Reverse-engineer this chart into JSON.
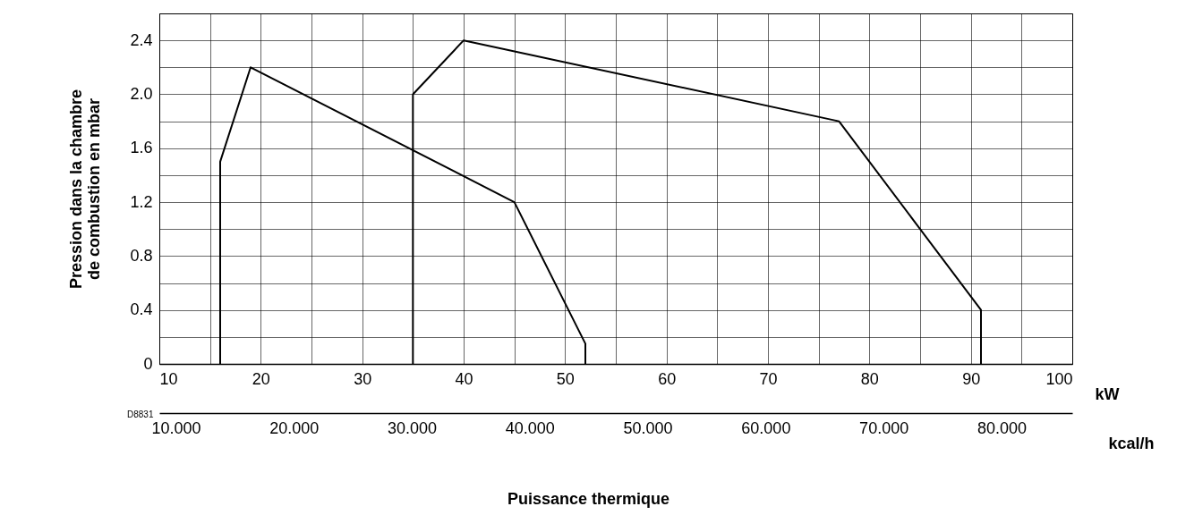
{
  "chart_data": {
    "type": "line",
    "xlabel": "kW",
    "x2label": "kcal/h",
    "ylabel": "Pression dans la chambre de combustion en mbar",
    "xlim": [
      10,
      100
    ],
    "xticks": [
      10,
      {
        "value": 15,
        "label": null
      },
      20,
      {
        "value": 25,
        "label": null
      },
      30,
      {
        "value": 35,
        "label": null
      },
      40,
      {
        "value": 45,
        "label": null
      },
      50,
      {
        "value": 55,
        "label": null
      },
      60,
      {
        "value": 65,
        "label": null
      },
      70,
      {
        "value": 75,
        "label": null
      },
      80,
      {
        "value": 85,
        "label": null
      },
      90,
      {
        "value": 95,
        "label": null
      },
      100
    ],
    "x2lim": [
      8.6,
      86
    ],
    "x2ticks": [
      {
        "value": 10,
        "label": "10.000"
      },
      {
        "value": 20,
        "label": "20.000"
      },
      {
        "value": 30,
        "label": "30.000"
      },
      {
        "value": 40,
        "label": "40.000"
      },
      {
        "value": 50,
        "label": "50.000"
      },
      {
        "value": 60,
        "label": "60.000"
      },
      {
        "value": 70,
        "label": "70.000"
      },
      {
        "value": 80,
        "label": "80.000"
      }
    ],
    "ylim": [
      0,
      2.6
    ],
    "yticks": [
      0,
      {
        "value": 0.2,
        "label": null
      },
      0.4,
      {
        "value": 0.6,
        "label": null
      },
      0.8,
      {
        "value": 1.0,
        "label": null
      },
      1.2,
      {
        "value": 1.4,
        "label": null
      },
      1.6,
      {
        "value": 1.8,
        "label": null
      },
      {
        "value": 2,
        "label": "2.0"
      },
      {
        "value": 2.2,
        "label": null
      },
      2.4,
      {
        "value": 2.6,
        "label": null
      }
    ],
    "grid": true,
    "marker": "none",
    "line_style": "solid",
    "series": [
      {
        "color": "#000000",
        "x": [
          16,
          16,
          19,
          45,
          52,
          52
        ],
        "values": [
          0,
          1.5,
          2.2,
          1.2,
          0.15,
          0
        ]
      },
      {
        "color": "#000000",
        "x": [
          35,
          35,
          40,
          77,
          91,
          91
        ],
        "values": [
          0,
          2.0,
          2.4,
          1.8,
          0.4,
          0
        ]
      }
    ],
    "annotations": [
      "Puissance thermique",
      "D8831"
    ]
  }
}
